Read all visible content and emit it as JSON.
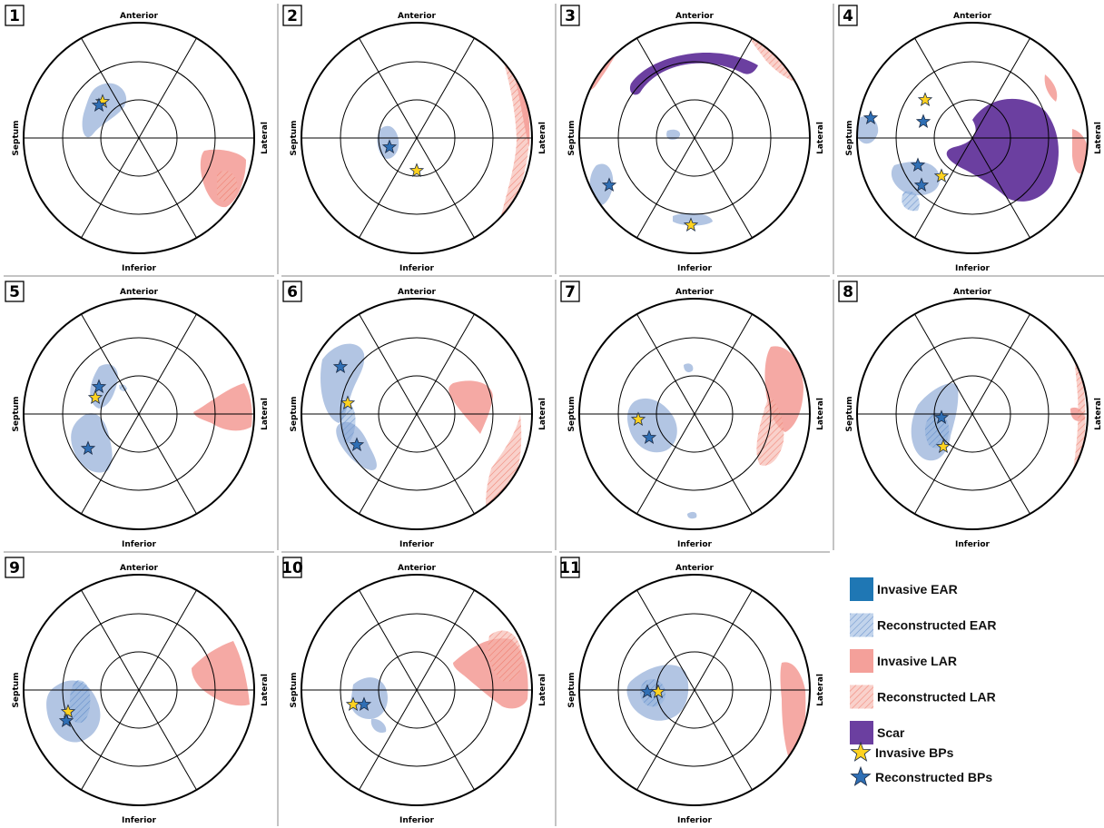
{
  "labels": {
    "anterior": "Anterior",
    "inferior": "Inferior",
    "septum": "Septum",
    "lateral": "Lateral"
  },
  "colors": {
    "invasive_ear": "#1f77b4",
    "reconstructed_ear": "#6b8fc9",
    "invasive_lar": "#f4a09a",
    "reconstructed_lar": "#f26b5b",
    "scar": "#6b3fa0",
    "invasive_bp": "#ffd21f",
    "reconstructed_bp": "#2f6fb5"
  },
  "panels": [
    {
      "id": "1",
      "features": [
        "ear-blob",
        "lar-blob",
        "star-invasive",
        "star-reconstructed"
      ]
    },
    {
      "id": "2",
      "features": [
        "ear-blob",
        "lar-band",
        "star-invasive",
        "star-reconstructed"
      ]
    },
    {
      "id": "3",
      "features": [
        "scar-arc",
        "ear-blob",
        "lar-blob",
        "star-invasive",
        "star-reconstructed"
      ]
    },
    {
      "id": "4",
      "features": [
        "scar-arc",
        "ear-blob",
        "lar-blob",
        "star-invasive",
        "star-reconstructed"
      ]
    },
    {
      "id": "5",
      "features": [
        "ear-blob",
        "lar-blob",
        "star-invasive",
        "star-reconstructed"
      ]
    },
    {
      "id": "6",
      "features": [
        "ear-blob",
        "lar-blob",
        "star-invasive",
        "star-reconstructed"
      ]
    },
    {
      "id": "7",
      "features": [
        "ear-blob",
        "lar-blob",
        "star-invasive",
        "star-reconstructed"
      ]
    },
    {
      "id": "8",
      "features": [
        "ear-blob",
        "lar-band",
        "star-invasive",
        "star-reconstructed"
      ]
    },
    {
      "id": "9",
      "features": [
        "ear-blob",
        "lar-blob",
        "star-invasive",
        "star-reconstructed"
      ]
    },
    {
      "id": "10",
      "features": [
        "ear-blob",
        "lar-blob",
        "star-invasive",
        "star-reconstructed"
      ]
    },
    {
      "id": "11",
      "features": [
        "ear-blob",
        "lar-band",
        "star-invasive",
        "star-reconstructed"
      ]
    }
  ],
  "legend": [
    {
      "key": "invasive-ear",
      "label": "Invasive EAR"
    },
    {
      "key": "reconstructed-ear",
      "label": "Reconstructed EAR"
    },
    {
      "key": "invasive-lar",
      "label": "Invasive LAR"
    },
    {
      "key": "reconstructed-lar",
      "label": "Reconstructed LAR"
    },
    {
      "key": "scar",
      "label": "Scar"
    },
    {
      "key": "invasive-bps",
      "label": "Invasive BPs"
    },
    {
      "key": "reconstructed-bps",
      "label": "Reconstructed BPs"
    }
  ]
}
